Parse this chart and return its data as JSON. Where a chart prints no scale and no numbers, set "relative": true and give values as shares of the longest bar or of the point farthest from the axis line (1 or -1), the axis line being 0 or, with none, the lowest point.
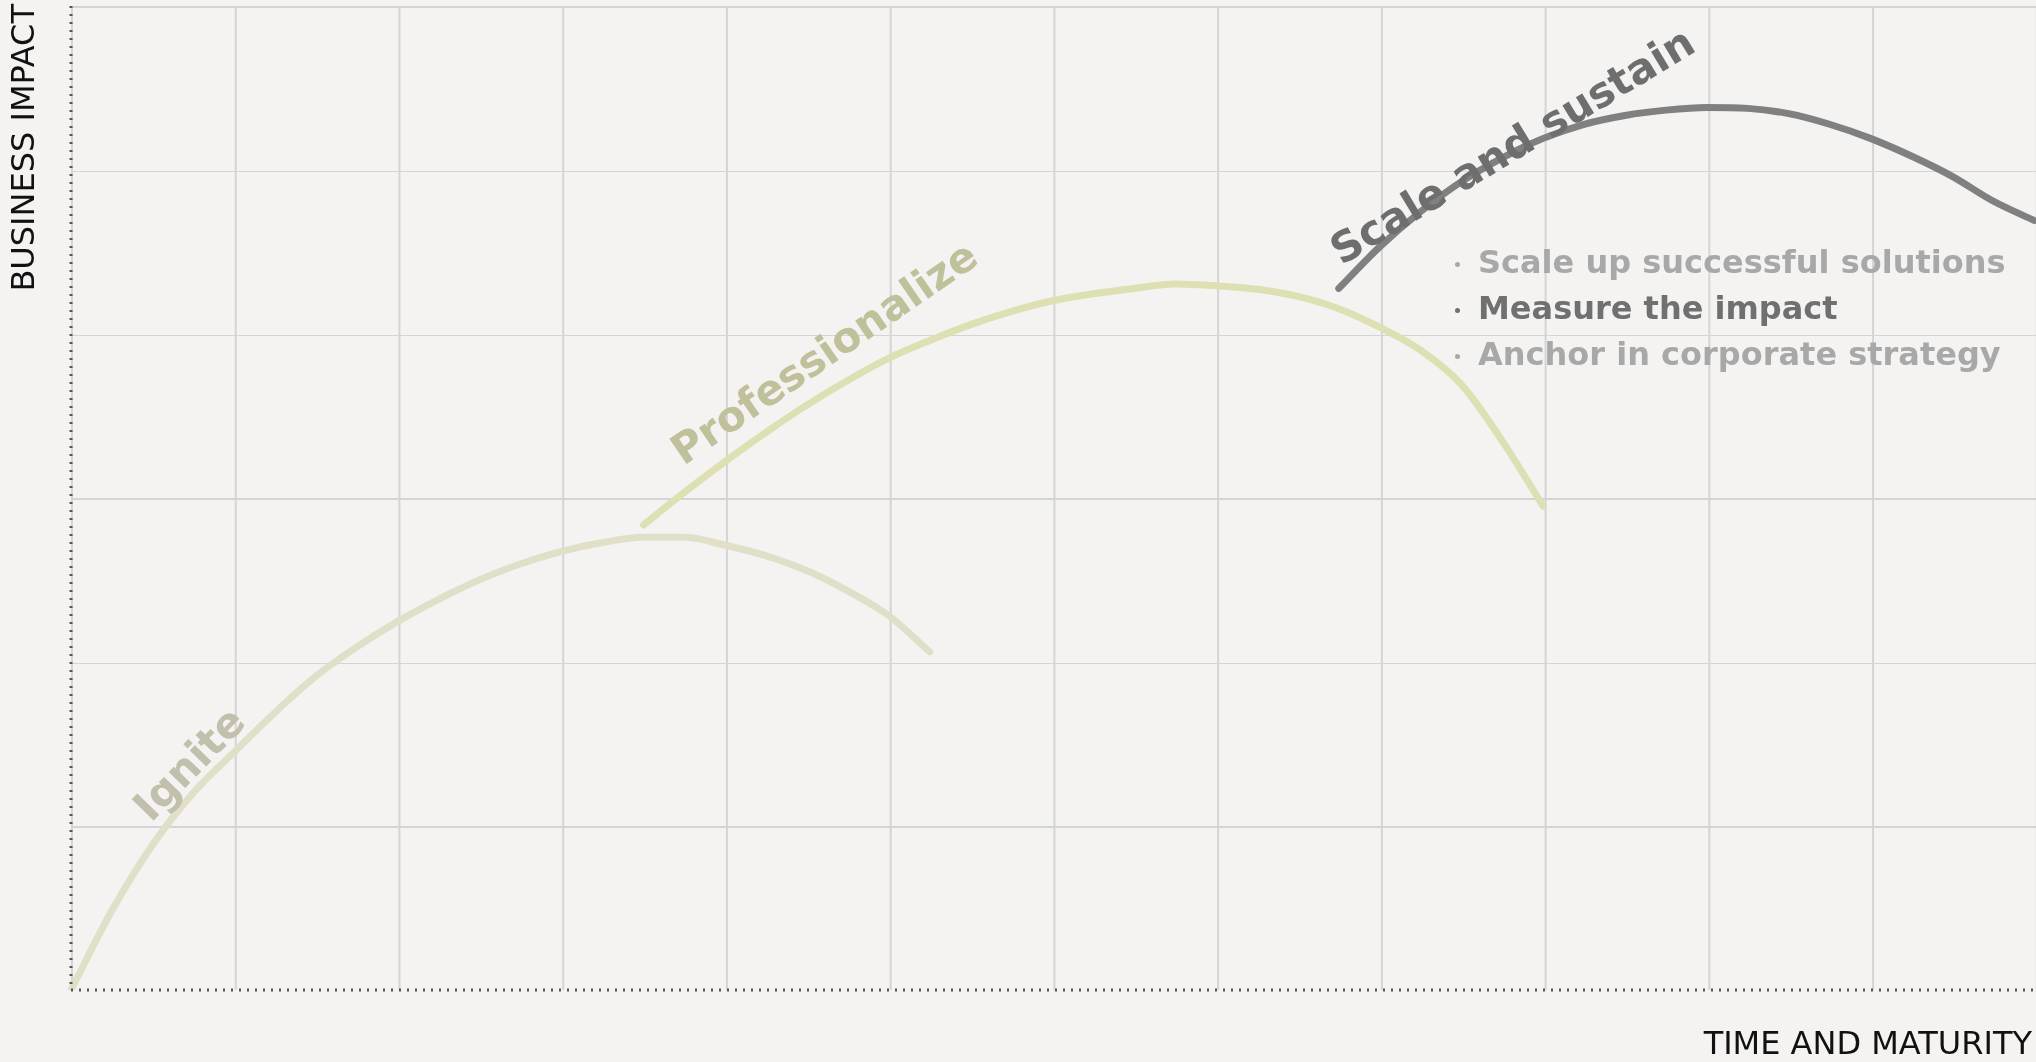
{
  "chart_data": {
    "type": "line",
    "relative": true,
    "xlabel": "TIME AND MATURITY",
    "ylabel": "BUSINESS IMPACT",
    "categories": [
      null,
      null,
      null,
      null,
      null,
      null,
      null,
      null,
      null,
      null,
      null,
      null,
      null,
      null,
      null,
      null,
      null,
      null,
      null,
      null,
      null,
      null,
      null,
      null,
      null,
      null,
      null,
      null,
      null,
      null,
      null,
      null,
      null,
      null,
      null,
      null,
      null,
      null,
      null,
      null,
      null,
      null,
      null,
      null,
      null,
      null,
      null,
      null,
      null
    ],
    "series": [
      {
        "name": "Ignite",
        "color": "#e2dfc9",
        "values": [
          0,
          0.09,
          0.165,
          0.224,
          0.27,
          0.315,
          0.356,
          0.389,
          0.418,
          0.443,
          0.465,
          0.483,
          0.497,
          0.507,
          0.513,
          0.513,
          0.504,
          0.492,
          0.475,
          0.452,
          0.424,
          0.383,
          null,
          null,
          null,
          null,
          null,
          null,
          null,
          null,
          null,
          null,
          null,
          null,
          null,
          null,
          null,
          null,
          null,
          null,
          null,
          null,
          null,
          null,
          null,
          null,
          null,
          null,
          null
        ]
      },
      {
        "name": "Professionalize",
        "color": "#dfdfb4",
        "values": [
          null,
          null,
          null,
          null,
          null,
          null,
          null,
          null,
          null,
          null,
          null,
          null,
          null,
          null,
          0.527,
          0.564,
          0.599,
          0.632,
          0.663,
          0.691,
          0.716,
          0.736,
          0.754,
          0.769,
          0.781,
          0.789,
          0.795,
          0.8,
          0.798,
          0.794,
          0.786,
          0.772,
          0.751,
          0.725,
          0.686,
          0.622,
          0.548,
          null,
          null,
          null,
          null,
          null,
          null,
          null,
          null,
          null,
          null,
          null,
          null
        ]
      },
      {
        "name": "Scale and sustain",
        "color": "#808080",
        "values": [
          null,
          null,
          null,
          null,
          null,
          null,
          null,
          null,
          null,
          null,
          null,
          null,
          null,
          null,
          null,
          null,
          null,
          null,
          null,
          null,
          null,
          null,
          null,
          null,
          null,
          null,
          null,
          null,
          null,
          null,
          null,
          0.795,
          0.842,
          0.882,
          0.916,
          0.943,
          0.965,
          0.981,
          0.991,
          0.997,
          1,
          0.999,
          0.993,
          0.981,
          0.965,
          0.945,
          0.922,
          0.894,
          0.872
        ]
      }
    ],
    "annotations": [
      "Scale up successful solutions",
      "Measure the impact",
      "Anchor in corporate strategy"
    ],
    "legend": false,
    "marker": "none",
    "line_style": "solid"
  }
}
